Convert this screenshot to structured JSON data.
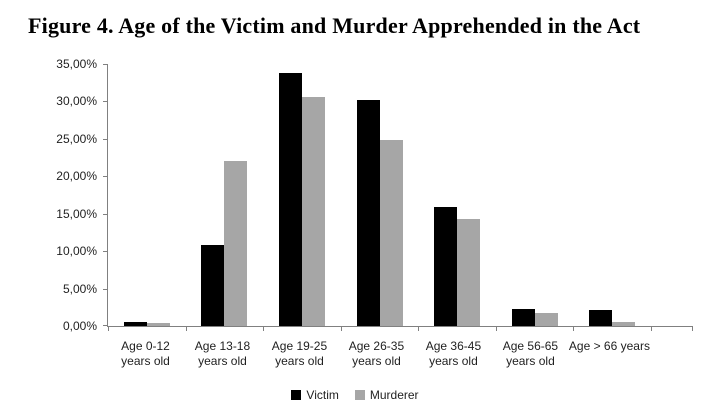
{
  "title": "Figure 4. Age of the Victim and Murder Apprehended in the Act",
  "chart_data": {
    "type": "bar",
    "title": "Figure 4. Age of the Victim and Murder Apprehended in the Act",
    "categories": [
      "Age 0-12 years old",
      "Age 13-18 years old",
      "Age 19-25 years old",
      "Age 26-35 years old",
      "Age 36-45 years old",
      "Age 56-65 years old",
      "Age > 66 years"
    ],
    "category_label_lines": [
      [
        "Age 0-12",
        "years old"
      ],
      [
        "Age 13-18",
        "years old"
      ],
      [
        "Age 19-25",
        "years old"
      ],
      [
        "Age 26-35",
        "years old"
      ],
      [
        "Age 36-45",
        "years old"
      ],
      [
        "Age 56-65",
        "years old"
      ],
      [
        "Age > 66 years"
      ]
    ],
    "series": [
      {
        "name": "Victim",
        "color": "#000000",
        "values": [
          0.5,
          10.8,
          33.8,
          30.2,
          15.9,
          2.3,
          2.1
        ]
      },
      {
        "name": "Murderer",
        "color": "#a6a6a6",
        "values": [
          0.4,
          22.0,
          30.6,
          24.8,
          14.3,
          1.7,
          0.6
        ]
      }
    ],
    "ylim": [
      0,
      35
    ],
    "ytick_step": 5,
    "ytick_labels": [
      "0,00%",
      "5,00%",
      "10,00%",
      "15,00%",
      "20,00%",
      "25,00%",
      "30,00%",
      "35,00%"
    ],
    "value_format": "percent-comma-decimal",
    "grid": false,
    "legend_position": "bottom",
    "axis_color": "#808080",
    "text_color": "#1f1f1f",
    "background_color": "#ffffff"
  }
}
